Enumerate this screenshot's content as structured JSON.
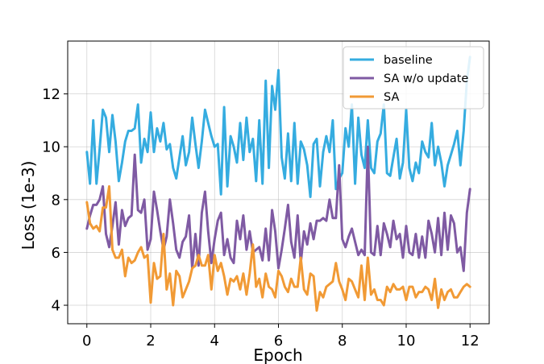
{
  "chart_data": {
    "type": "line",
    "xlabel": "Epoch",
    "ylabel": "Loss (1e-3)",
    "xlim": [
      -0.6,
      12.6
    ],
    "ylim": [
      3.3,
      14.0
    ],
    "xticks": [
      0,
      2,
      4,
      6,
      8,
      10,
      12
    ],
    "yticks": [
      4,
      6,
      8,
      10,
      12
    ],
    "x_step": 0.1,
    "grid": true,
    "legend": "top-right",
    "series": [
      {
        "name": "baseline",
        "color": "#35ACE0",
        "values": [
          9.8,
          8.6,
          11.0,
          8.6,
          9.9,
          11.4,
          11.1,
          9.8,
          11.2,
          10.2,
          8.7,
          9.4,
          10.2,
          10.6,
          10.6,
          10.7,
          11.6,
          9.4,
          10.3,
          9.8,
          11.3,
          9.8,
          10.7,
          10.2,
          10.9,
          9.9,
          10.1,
          9.2,
          8.8,
          9.6,
          10.4,
          9.3,
          9.8,
          11.1,
          10.1,
          9.2,
          10.2,
          11.4,
          10.9,
          10.4,
          10.0,
          10.1,
          8.2,
          11.5,
          8.5,
          10.4,
          10.0,
          9.4,
          10.9,
          9.5,
          11.1,
          9.8,
          10.3,
          8.7,
          11.0,
          8.6,
          12.5,
          9.2,
          12.3,
          11.4,
          12.9,
          9.6,
          8.8,
          10.5,
          8.7,
          10.9,
          8.6,
          10.2,
          9.9,
          9.3,
          8.1,
          10.1,
          10.3,
          8.5,
          9.8,
          10.4,
          9.8,
          11.0,
          8.4,
          8.8,
          9.0,
          10.7,
          10.0,
          11.6,
          8.6,
          11.1,
          9.7,
          9.2,
          11.0,
          9.2,
          9.0,
          10.2,
          10.5,
          11.6,
          9.0,
          8.9,
          9.6,
          10.3,
          8.8,
          9.4,
          11.4,
          9.2,
          8.7,
          9.4,
          9.0,
          10.2,
          9.8,
          9.6,
          10.9,
          9.3,
          10.0,
          9.4,
          8.5,
          9.3,
          9.7,
          10.1,
          10.6,
          9.3,
          10.6,
          12.5,
          13.4
        ]
      },
      {
        "name": "SA w/o update",
        "color": "#7F5AA3",
        "values": [
          6.9,
          7.4,
          7.8,
          7.8,
          8.0,
          8.5,
          6.7,
          6.2,
          7.0,
          7.9,
          6.3,
          7.6,
          7.0,
          7.3,
          7.4,
          9.7,
          7.6,
          7.5,
          8.0,
          6.1,
          6.5,
          8.3,
          7.6,
          6.8,
          6.1,
          6.6,
          8.0,
          7.1,
          6.1,
          5.8,
          6.4,
          6.6,
          7.4,
          5.4,
          6.7,
          5.5,
          7.5,
          8.3,
          6.8,
          5.6,
          6.5,
          7.2,
          7.5,
          5.9,
          6.5,
          5.8,
          5.6,
          7.2,
          6.5,
          7.4,
          6.1,
          6.8,
          6.0,
          6.1,
          6.2,
          5.7,
          6.9,
          5.7,
          7.6,
          6.8,
          5.4,
          6.1,
          6.9,
          7.8,
          6.4,
          5.8,
          7.4,
          5.6,
          6.8,
          6.3,
          7.1,
          6.5,
          7.2,
          7.2,
          7.3,
          7.2,
          8.0,
          7.3,
          7.3,
          9.3,
          6.5,
          6.2,
          6.6,
          6.9,
          6.4,
          5.9,
          6.1,
          5.9,
          10.0,
          6.0,
          5.9,
          7.0,
          5.9,
          7.1,
          6.7,
          6.2,
          7.2,
          6.5,
          6.7,
          5.8,
          7.0,
          6.0,
          5.9,
          6.7,
          5.8,
          6.6,
          5.8,
          7.2,
          6.7,
          6.0,
          7.3,
          5.9,
          7.5,
          6.1,
          7.4,
          7.1,
          6.0,
          6.2,
          5.3,
          7.5,
          8.4
        ]
      },
      {
        "name": "SA",
        "color": "#F19A35",
        "values": [
          7.9,
          7.1,
          6.9,
          7.0,
          6.8,
          7.7,
          7.7,
          8.5,
          6.1,
          5.8,
          5.8,
          6.1,
          5.1,
          5.8,
          5.6,
          5.7,
          6.0,
          6.2,
          5.8,
          5.9,
          4.1,
          5.6,
          5.0,
          5.1,
          6.7,
          4.6,
          5.2,
          4.0,
          5.3,
          5.1,
          4.3,
          4.6,
          4.9,
          5.4,
          5.5,
          5.9,
          5.5,
          5.5,
          5.9,
          4.6,
          5.9,
          5.3,
          5.6,
          5.1,
          4.4,
          5.0,
          4.9,
          5.1,
          4.6,
          5.2,
          4.4,
          5.2,
          6.3,
          4.7,
          5.0,
          4.3,
          5.2,
          4.7,
          4.6,
          4.3,
          5.3,
          5.1,
          4.7,
          4.5,
          5.0,
          4.7,
          4.7,
          5.8,
          4.6,
          4.4,
          5.2,
          5.1,
          3.8,
          4.5,
          4.3,
          4.7,
          4.8,
          4.9,
          5.6,
          4.9,
          4.6,
          4.2,
          5.0,
          4.9,
          4.6,
          4.3,
          5.5,
          4.2,
          5.8,
          4.4,
          4.6,
          4.2,
          4.2,
          4.0,
          4.7,
          4.5,
          4.8,
          4.6,
          4.6,
          4.7,
          4.2,
          4.7,
          4.7,
          4.3,
          4.5,
          4.5,
          4.7,
          4.6,
          4.2,
          5.0,
          3.9,
          4.6,
          4.2,
          4.5,
          4.6,
          4.3,
          4.3,
          4.5,
          4.7,
          4.8,
          4.7
        ]
      }
    ]
  }
}
